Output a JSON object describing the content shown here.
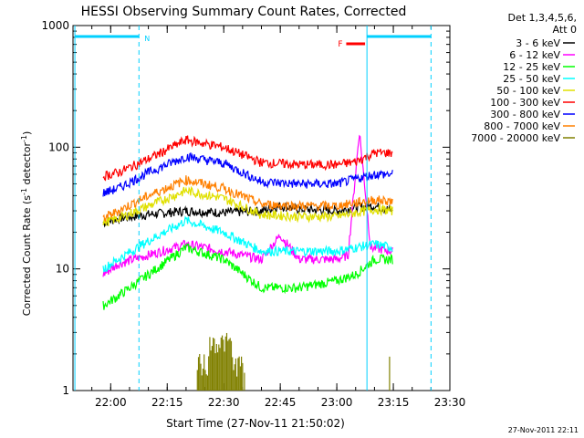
{
  "chart_data": {
    "type": "line",
    "title": "HESSI Observing Summary Count Rates, Corrected",
    "xlabel": "Start Time (27-Nov-11 21:50:02)",
    "ylabel_main": "Corrected Count Rate (s",
    "ylabel_sup1": "-1",
    "ylabel_mid": " detector",
    "ylabel_sup2": "-1",
    "ylabel_end": ")",
    "yscale": "log",
    "xlim_min": [
      0,
      100
    ],
    "ylim": [
      1,
      1000
    ],
    "xticks": [
      {
        "label": "22:00",
        "min": 10
      },
      {
        "label": "22:15",
        "min": 25
      },
      {
        "label": "22:30",
        "min": 40
      },
      {
        "label": "22:45",
        "min": 55
      },
      {
        "label": "23:00",
        "min": 70
      },
      {
        "label": "23:15",
        "min": 85
      },
      {
        "label": "23:30",
        "min": 100
      }
    ],
    "yticks": [
      {
        "label": "1",
        "value": 1
      },
      {
        "label": "10",
        "value": 10
      },
      {
        "label": "100",
        "value": 100
      },
      {
        "label": "1000",
        "value": 1000
      }
    ],
    "legend": {
      "header1": "Det 1,3,4,5,6,",
      "header2": "Att 0",
      "placement": "right"
    },
    "series": [
      {
        "name": "3 - 6 keV",
        "color": "#000000",
        "points": [
          [
            8,
            24
          ],
          [
            12,
            26
          ],
          [
            20,
            28
          ],
          [
            30,
            30
          ],
          [
            40,
            29
          ],
          [
            50,
            30
          ],
          [
            55,
            33
          ],
          [
            60,
            31
          ],
          [
            70,
            30
          ],
          [
            75,
            32
          ],
          [
            80,
            33
          ],
          [
            85,
            30
          ]
        ]
      },
      {
        "name": "6 - 12 keV",
        "color": "#ff00ff",
        "points": [
          [
            8,
            9
          ],
          [
            12,
            11
          ],
          [
            20,
            13
          ],
          [
            30,
            16
          ],
          [
            40,
            14
          ],
          [
            50,
            12
          ],
          [
            55,
            19
          ],
          [
            60,
            12
          ],
          [
            70,
            12
          ],
          [
            73,
            13
          ],
          [
            76,
            135
          ],
          [
            79,
            15
          ],
          [
            85,
            14
          ]
        ]
      },
      {
        "name": "12 - 25 keV",
        "color": "#00ff00",
        "points": [
          [
            8,
            5
          ],
          [
            12,
            6
          ],
          [
            20,
            9
          ],
          [
            30,
            15
          ],
          [
            40,
            12
          ],
          [
            50,
            7
          ],
          [
            60,
            7
          ],
          [
            70,
            8
          ],
          [
            75,
            9
          ],
          [
            80,
            12
          ],
          [
            85,
            12
          ]
        ]
      },
      {
        "name": "25 - 50 keV",
        "color": "#00ffff",
        "points": [
          [
            8,
            10
          ],
          [
            12,
            12
          ],
          [
            20,
            17
          ],
          [
            30,
            25
          ],
          [
            40,
            20
          ],
          [
            50,
            14
          ],
          [
            60,
            14
          ],
          [
            70,
            14
          ],
          [
            75,
            15
          ],
          [
            80,
            16
          ],
          [
            85,
            15
          ]
        ]
      },
      {
        "name": "50 - 100 keV",
        "color": "#e0e000",
        "points": [
          [
            8,
            24
          ],
          [
            12,
            26
          ],
          [
            20,
            33
          ],
          [
            30,
            44
          ],
          [
            40,
            38
          ],
          [
            50,
            28
          ],
          [
            60,
            27
          ],
          [
            70,
            27
          ],
          [
            75,
            29
          ],
          [
            80,
            31
          ],
          [
            85,
            30
          ]
        ]
      },
      {
        "name": "100 - 300 keV",
        "color": "#ff0000",
        "points": [
          [
            8,
            58
          ],
          [
            12,
            62
          ],
          [
            20,
            80
          ],
          [
            30,
            115
          ],
          [
            40,
            100
          ],
          [
            50,
            75
          ],
          [
            60,
            72
          ],
          [
            70,
            72
          ],
          [
            75,
            76
          ],
          [
            80,
            90
          ],
          [
            85,
            90
          ]
        ]
      },
      {
        "name": "300 - 800 keV",
        "color": "#0000ff",
        "points": [
          [
            8,
            42
          ],
          [
            12,
            46
          ],
          [
            20,
            62
          ],
          [
            30,
            84
          ],
          [
            40,
            74
          ],
          [
            50,
            52
          ],
          [
            60,
            50
          ],
          [
            70,
            50
          ],
          [
            75,
            55
          ],
          [
            80,
            60
          ],
          [
            85,
            60
          ]
        ]
      },
      {
        "name": "800 - 7000 keV",
        "color": "#ff8000",
        "points": [
          [
            8,
            26
          ],
          [
            12,
            30
          ],
          [
            20,
            40
          ],
          [
            30,
            54
          ],
          [
            40,
            46
          ],
          [
            50,
            34
          ],
          [
            60,
            33
          ],
          [
            70,
            33
          ],
          [
            75,
            35
          ],
          [
            80,
            37
          ],
          [
            85,
            36
          ]
        ]
      },
      {
        "name": "7000 - 20000 keV",
        "color": "#808000",
        "points": []
      }
    ],
    "annotations": [
      {
        "label": "N",
        "color": "#00d0ff"
      },
      {
        "label": "F",
        "color": "#ff0000"
      }
    ]
  },
  "footer": {
    "datestamp": "27-Nov-2011 22:11"
  }
}
